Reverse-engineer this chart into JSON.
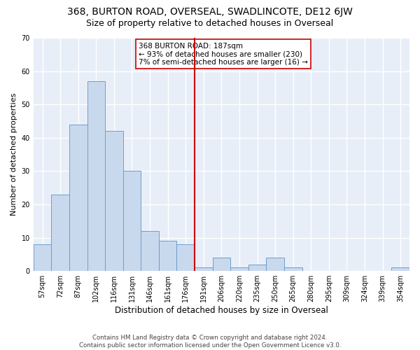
{
  "title": "368, BURTON ROAD, OVERSEAL, SWADLINCOTE, DE12 6JW",
  "subtitle": "Size of property relative to detached houses in Overseal",
  "xlabel": "Distribution of detached houses by size in Overseal",
  "ylabel": "Number of detached properties",
  "bar_color": "#c9d9ed",
  "bar_edge_color": "#6f9dcc",
  "background_color": "#e8eef8",
  "grid_color": "#ffffff",
  "categories": [
    "57sqm",
    "72sqm",
    "87sqm",
    "102sqm",
    "116sqm",
    "131sqm",
    "146sqm",
    "161sqm",
    "176sqm",
    "191sqm",
    "206sqm",
    "220sqm",
    "235sqm",
    "250sqm",
    "265sqm",
    "280sqm",
    "295sqm",
    "309sqm",
    "324sqm",
    "339sqm",
    "354sqm"
  ],
  "values": [
    8,
    23,
    44,
    57,
    42,
    30,
    12,
    9,
    8,
    1,
    4,
    1,
    2,
    4,
    1,
    0,
    0,
    0,
    0,
    0,
    1
  ],
  "vline_index": 9,
  "vline_color": "#cc0000",
  "annotation_line1": "368 BURTON ROAD: 187sqm",
  "annotation_line2": "← 93% of detached houses are smaller (230)",
  "annotation_line3": "7% of semi-detached houses are larger (16) →",
  "annotation_box_color": "#cc0000",
  "ylim": [
    0,
    70
  ],
  "yticks": [
    0,
    10,
    20,
    30,
    40,
    50,
    60,
    70
  ],
  "footer": "Contains HM Land Registry data © Crown copyright and database right 2024.\nContains public sector information licensed under the Open Government Licence v3.0.",
  "title_fontsize": 10,
  "subtitle_fontsize": 9,
  "annotation_fontsize": 7.5,
  "ylabel_fontsize": 8,
  "xlabel_fontsize": 8.5,
  "tick_fontsize": 7
}
